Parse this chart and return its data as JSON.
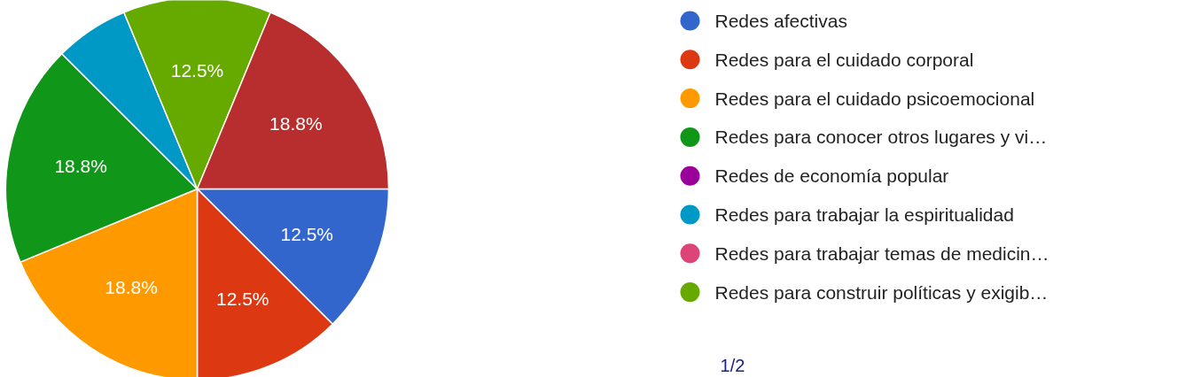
{
  "chart_data": {
    "type": "pie",
    "categories": [
      "Redes afectivas",
      "Redes para el cuidado corporal",
      "Redes para el cuidado psicoemocional",
      "Redes para conocer otros lugares y vi…",
      "Redes de economía popular",
      "Redes para trabajar la espiritualidad",
      "Redes para trabajar temas de medicin…",
      "Redes para construir políticas y exigib…",
      null
    ],
    "values": [
      12.5,
      12.5,
      18.75,
      18.75,
      0,
      6.25,
      0,
      12.5,
      18.75
    ],
    "value_labels": [
      "12.5%",
      "12.5%",
      "18.8%",
      "18.8%",
      null,
      null,
      null,
      "12.5%",
      "18.8%"
    ],
    "colors": [
      "#3366cc",
      "#dc3912",
      "#ff9900",
      "#109618",
      "#990099",
      "#0099c6",
      "#dd4477",
      "#66aa00",
      "#b82e2e"
    ],
    "legend": "right",
    "annotations": [
      "1/2"
    ]
  }
}
